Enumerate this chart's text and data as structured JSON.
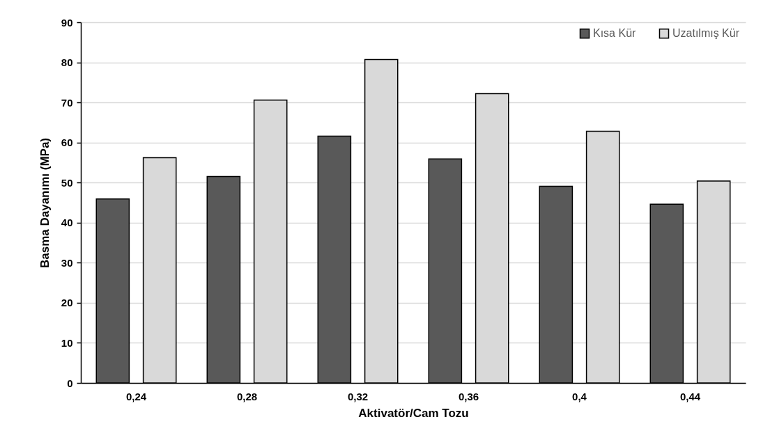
{
  "chart_data": {
    "type": "bar",
    "xlabel": "Aktivatör/Cam Tozu",
    "ylabel": "Basma Dayanımı (MPa)",
    "categories": [
      "0,24",
      "0,28",
      "0,32",
      "0,36",
      "0,4",
      "0,44"
    ],
    "series": [
      {
        "name": "Kısa Kür",
        "color": "#595959",
        "values": [
          45.9,
          51.5,
          61.6,
          55.9,
          49.1,
          44.6
        ]
      },
      {
        "name": "Uzatılmış Kür",
        "color": "#d9d9d9",
        "values": [
          56.2,
          70.6,
          80.7,
          72.2,
          62.8,
          50.4
        ]
      }
    ],
    "ylim": [
      0,
      90
    ],
    "yticks": [
      0,
      10,
      20,
      30,
      40,
      50,
      60,
      70,
      80,
      90
    ],
    "grid": "y",
    "legend": "top right"
  }
}
